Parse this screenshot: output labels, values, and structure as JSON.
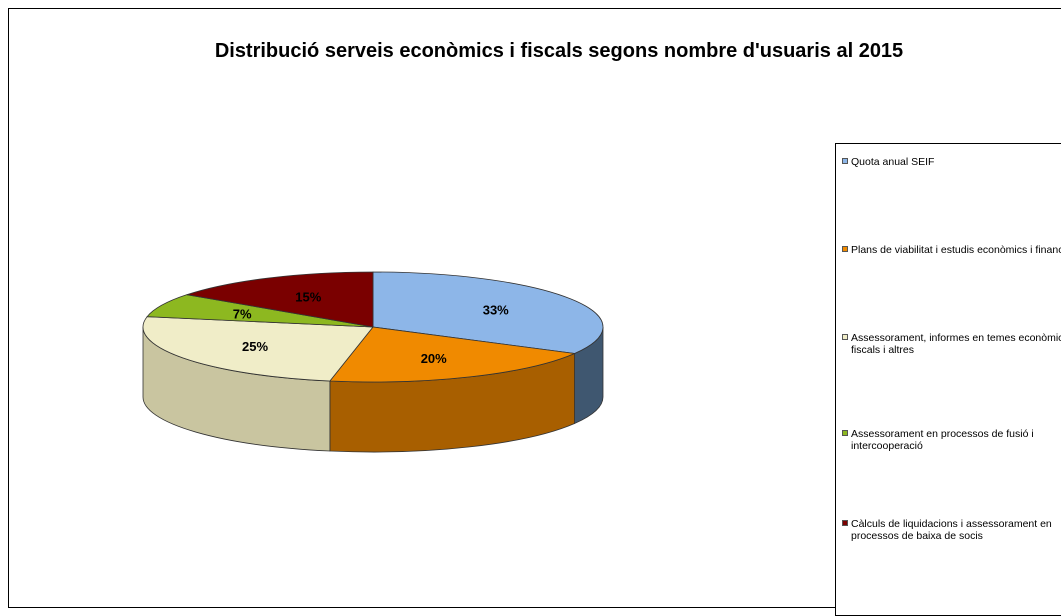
{
  "chart_data": {
    "type": "pie",
    "title": "Distribució serveis econòmics i fiscals segons nombre d'usuaris al 2015",
    "legend_position": "right",
    "slices": [
      {
        "label": "Quota anual SEIF",
        "value": 33,
        "display": "33%",
        "color": "#8DB6E8",
        "side_color": "#3F5770"
      },
      {
        "label": "Plans de viabilitat i estudis econòmics i financers",
        "value": 20,
        "display": "20%",
        "color": "#F08A00",
        "side_color": "#A85F00"
      },
      {
        "label": "Assessorament, informes en temes econòmics i fiscals i altres",
        "value": 25,
        "display": "25%",
        "color": "#F0EDC8",
        "side_color": "#C9C5A0"
      },
      {
        "label": "Assessorament en processos de fusió i intercooperació",
        "value": 7,
        "display": "7%",
        "color": "#8DB820",
        "side_color": "#5E7E10"
      },
      {
        "label": "Càlculs de liquidacions i assessorament en processos de baixa de socis",
        "value": 15,
        "display": "15%",
        "color": "#7A0000",
        "side_color": "#4A0000"
      }
    ]
  }
}
